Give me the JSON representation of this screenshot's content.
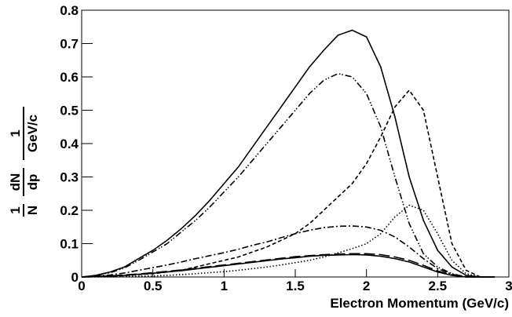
{
  "chart_data": {
    "type": "line",
    "xlabel": "Electron Momentum (GeV/c)",
    "ylabel": {
      "f1_num": "1",
      "f1_den": "N",
      "f2_num": "dN",
      "f2_den": "dp",
      "f3_num": "1",
      "f3_den": "GeV/c"
    },
    "x": [
      0,
      0.1,
      0.2,
      0.3,
      0.4,
      0.5,
      0.6,
      0.7,
      0.8,
      0.9,
      1.0,
      1.1,
      1.2,
      1.3,
      1.4,
      1.5,
      1.6,
      1.7,
      1.8,
      1.9,
      2.0,
      2.1,
      2.2,
      2.3,
      2.4,
      2.5,
      2.6,
      2.7,
      2.8,
      2.9
    ],
    "xlim": [
      0,
      3
    ],
    "xticks": [
      0,
      0.5,
      1,
      1.5,
      2,
      2.5,
      3
    ],
    "ylim": [
      0,
      0.8
    ],
    "yticks": [
      0,
      0.1,
      0.2,
      0.3,
      0.4,
      0.5,
      0.6,
      0.7,
      0.8
    ],
    "series": [
      {
        "color": "#000000",
        "dash": "solid",
        "values": [
          0,
          0.005,
          0.015,
          0.03,
          0.055,
          0.08,
          0.11,
          0.145,
          0.185,
          0.23,
          0.28,
          0.33,
          0.39,
          0.45,
          0.51,
          0.57,
          0.63,
          0.68,
          0.725,
          0.74,
          0.72,
          0.63,
          0.48,
          0.3,
          0.17,
          0.08,
          0.03,
          0.005,
          0,
          0
        ]
      },
      {
        "color": "#000000",
        "dash": "dashdotdot",
        "values": [
          0,
          0.004,
          0.013,
          0.027,
          0.05,
          0.075,
          0.1,
          0.135,
          0.17,
          0.21,
          0.255,
          0.3,
          0.35,
          0.4,
          0.45,
          0.5,
          0.55,
          0.59,
          0.61,
          0.6,
          0.55,
          0.45,
          0.3,
          0.16,
          0.07,
          0.03,
          0.01,
          0,
          0,
          0
        ]
      },
      {
        "color": "#000000",
        "dash": "dashed",
        "values": [
          0,
          0.001,
          0.002,
          0.004,
          0.007,
          0.01,
          0.015,
          0.02,
          0.03,
          0.04,
          0.05,
          0.06,
          0.075,
          0.09,
          0.11,
          0.13,
          0.16,
          0.2,
          0.24,
          0.28,
          0.34,
          0.42,
          0.51,
          0.56,
          0.5,
          0.3,
          0.1,
          0.02,
          0,
          0
        ]
      },
      {
        "color": "#000000",
        "dash": "dotted",
        "values": [
          0,
          0,
          0,
          0.001,
          0.002,
          0.003,
          0.005,
          0.007,
          0.01,
          0.013,
          0.016,
          0.02,
          0.025,
          0.03,
          0.036,
          0.043,
          0.05,
          0.06,
          0.072,
          0.085,
          0.1,
          0.13,
          0.18,
          0.215,
          0.2,
          0.13,
          0.05,
          0.01,
          0,
          0
        ]
      },
      {
        "color": "#000000",
        "dash": "dashdot",
        "values": [
          0,
          0.002,
          0.006,
          0.012,
          0.02,
          0.028,
          0.036,
          0.045,
          0.055,
          0.064,
          0.073,
          0.083,
          0.095,
          0.105,
          0.118,
          0.13,
          0.14,
          0.148,
          0.152,
          0.153,
          0.15,
          0.14,
          0.12,
          0.09,
          0.055,
          0.025,
          0.008,
          0.001,
          0,
          0
        ]
      },
      {
        "color": "#000000",
        "dash": "longdash",
        "values": [
          0,
          0.001,
          0.003,
          0.006,
          0.009,
          0.013,
          0.017,
          0.021,
          0.026,
          0.031,
          0.036,
          0.041,
          0.046,
          0.051,
          0.056,
          0.061,
          0.064,
          0.067,
          0.069,
          0.07,
          0.07,
          0.067,
          0.06,
          0.05,
          0.035,
          0.018,
          0.006,
          0,
          0,
          0
        ]
      },
      {
        "color": "#000000",
        "dash": "solid",
        "values": [
          0,
          0.001,
          0.003,
          0.005,
          0.008,
          0.011,
          0.015,
          0.019,
          0.024,
          0.029,
          0.034,
          0.039,
          0.044,
          0.049,
          0.054,
          0.058,
          0.062,
          0.065,
          0.066,
          0.067,
          0.066,
          0.062,
          0.055,
          0.045,
          0.03,
          0.015,
          0.005,
          0,
          0,
          0
        ]
      }
    ]
  }
}
